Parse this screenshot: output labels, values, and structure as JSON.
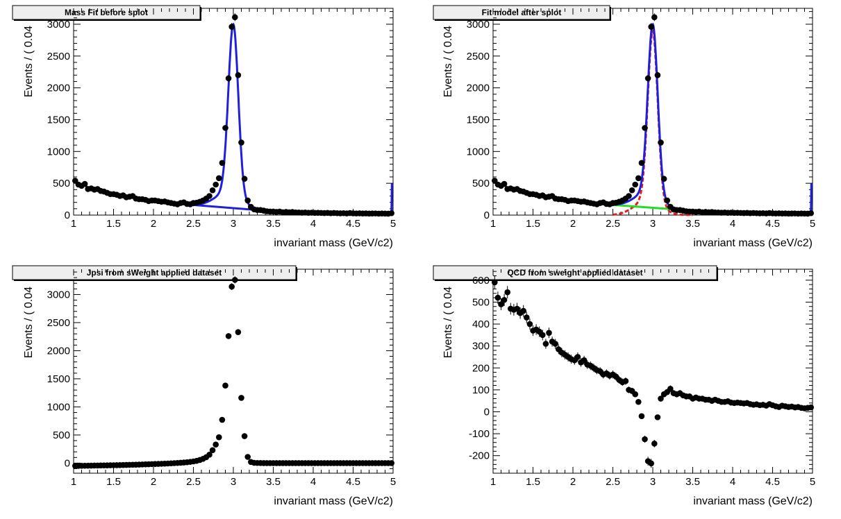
{
  "chart_data": [
    {
      "type": "scatter",
      "title": "Mass Fit before splot",
      "xlabel": "invariant mass (GeV/c2)",
      "ylabel": "Events / ( 0.04",
      "xlim": [
        1,
        5
      ],
      "ylim": [
        0,
        3250
      ],
      "xticks": [
        1,
        1.5,
        2,
        2.5,
        3,
        3.5,
        4,
        4.5,
        5
      ],
      "yticks": [
        0,
        500,
        1000,
        1500,
        2000,
        2500,
        3000
      ],
      "series": [
        {
          "kind": "points",
          "color": "#000000",
          "x": [
            1.02,
            1.06,
            1.1,
            1.14,
            1.18,
            1.22,
            1.26,
            1.3,
            1.34,
            1.38,
            1.42,
            1.46,
            1.5,
            1.54,
            1.58,
            1.62,
            1.66,
            1.7,
            1.74,
            1.78,
            1.82,
            1.86,
            1.9,
            1.94,
            1.98,
            2.02,
            2.06,
            2.1,
            2.14,
            2.18,
            2.22,
            2.26,
            2.3,
            2.34,
            2.38,
            2.42,
            2.46,
            2.5,
            2.54,
            2.58,
            2.62,
            2.66,
            2.7,
            2.74,
            2.78,
            2.82,
            2.86,
            2.9,
            2.94,
            2.98,
            3.02,
            3.06,
            3.1,
            3.14,
            3.18,
            3.22,
            3.26,
            3.3,
            3.34,
            3.38,
            3.42,
            3.46,
            3.5,
            3.54,
            3.58,
            3.62,
            3.66,
            3.7,
            3.74,
            3.78,
            3.82,
            3.86,
            3.9,
            3.94,
            3.98,
            4.02,
            4.06,
            4.1,
            4.14,
            4.18,
            4.22,
            4.26,
            4.3,
            4.34,
            4.38,
            4.42,
            4.46,
            4.5,
            4.54,
            4.58,
            4.62,
            4.66,
            4.7,
            4.74,
            4.78,
            4.82,
            4.86,
            4.9,
            4.94,
            4.98
          ],
          "y": [
            540,
            480,
            460,
            490,
            410,
            420,
            400,
            410,
            380,
            370,
            350,
            330,
            330,
            320,
            300,
            310,
            280,
            290,
            300,
            260,
            250,
            250,
            240,
            220,
            230,
            230,
            220,
            210,
            215,
            200,
            190,
            180,
            170,
            190,
            200,
            175,
            170,
            190,
            195,
            210,
            230,
            260,
            300,
            390,
            480,
            580,
            820,
            1370,
            2150,
            2960,
            3110,
            2200,
            1140,
            570,
            230,
            130,
            90,
            80,
            80,
            70,
            60,
            55,
            55,
            50,
            55,
            45,
            50,
            45,
            48,
            42,
            40,
            38,
            40,
            36,
            38,
            35,
            36,
            34,
            32,
            35,
            30,
            33,
            30,
            28,
            30,
            27,
            32,
            28,
            26,
            28,
            25,
            27,
            24,
            25,
            26,
            23,
            25,
            24,
            22,
            30
          ]
        },
        {
          "kind": "total-fit-curve",
          "color": "#1f1fdd"
        },
        {
          "kind": "background-line",
          "color": "#1f1fdd",
          "x": [
            2.5,
            3.5
          ],
          "y": [
            160,
            60
          ]
        }
      ]
    },
    {
      "type": "scatter",
      "title": "Fit model after splot",
      "xlabel": "invariant mass (GeV/c2)",
      "ylabel": "Events / ( 0.04",
      "xlim": [
        1,
        5
      ],
      "ylim": [
        0,
        3250
      ],
      "xticks": [
        1,
        1.5,
        2,
        2.5,
        3,
        3.5,
        4,
        4.5,
        5
      ],
      "yticks": [
        0,
        500,
        1000,
        1500,
        2000,
        2500,
        3000
      ],
      "series": [
        {
          "kind": "points",
          "color": "#000000",
          "same_as_panel": 0
        },
        {
          "kind": "signal-curve",
          "color": "#dd1f1f",
          "style": "dashed"
        },
        {
          "kind": "background-line",
          "color": "#22dd22",
          "x": [
            2.5,
            3.5
          ],
          "y": [
            160,
            70
          ]
        },
        {
          "kind": "total-fit-curve",
          "color": "#1f1fdd"
        }
      ]
    },
    {
      "type": "scatter",
      "title": "Jpsi from sWeight applied dataset",
      "xlabel": "invariant mass (GeV/c2)",
      "ylabel": "Events / ( 0.04",
      "xlim": [
        1,
        5
      ],
      "ylim": [
        -180,
        3450
      ],
      "xticks": [
        1,
        1.5,
        2,
        2.5,
        3,
        3.5,
        4,
        4.5,
        5
      ],
      "yticks": [
        0,
        500,
        1000,
        1500,
        2000,
        2500,
        3000
      ],
      "series": [
        {
          "kind": "points",
          "color": "#000000",
          "x": [
            1.02,
            1.06,
            1.1,
            1.14,
            1.18,
            1.22,
            1.26,
            1.3,
            1.34,
            1.38,
            1.42,
            1.46,
            1.5,
            1.54,
            1.58,
            1.62,
            1.66,
            1.7,
            1.74,
            1.78,
            1.82,
            1.86,
            1.9,
            1.94,
            1.98,
            2.02,
            2.06,
            2.1,
            2.14,
            2.18,
            2.22,
            2.26,
            2.3,
            2.34,
            2.38,
            2.42,
            2.46,
            2.5,
            2.54,
            2.58,
            2.62,
            2.66,
            2.7,
            2.74,
            2.78,
            2.82,
            2.86,
            2.9,
            2.94,
            2.98,
            3.02,
            3.06,
            3.1,
            3.14,
            3.18,
            3.22,
            3.26,
            3.3,
            3.34,
            3.38,
            3.42,
            3.46,
            3.5,
            3.54,
            3.58,
            3.62,
            3.66,
            3.7,
            3.74,
            3.78,
            3.82,
            3.86,
            3.9,
            3.94,
            3.98,
            4.02,
            4.06,
            4.1,
            4.14,
            4.18,
            4.22,
            4.26,
            4.3,
            4.34,
            4.38,
            4.42,
            4.46,
            4.5,
            4.54,
            4.58,
            4.62,
            4.66,
            4.7,
            4.74,
            4.78,
            4.82,
            4.86,
            4.9,
            4.94,
            4.98
          ],
          "y": [
            -50,
            -50,
            -48,
            -47,
            -46,
            -45,
            -44,
            -43,
            -42,
            -41,
            -40,
            -39,
            -38,
            -37,
            -36,
            -34,
            -33,
            -31,
            -30,
            -28,
            -26,
            -24,
            -22,
            -20,
            -18,
            -16,
            -14,
            -12,
            -10,
            -7,
            -4,
            -1,
            2,
            6,
            10,
            15,
            22,
            30,
            40,
            55,
            75,
            105,
            150,
            230,
            330,
            460,
            770,
            1380,
            2260,
            3140,
            3260,
            2330,
            1160,
            480,
            110,
            20,
            5,
            2,
            1,
            0,
            0,
            0,
            0,
            0,
            0,
            0,
            0,
            0,
            0,
            0,
            0,
            0,
            0,
            0,
            0,
            0,
            0,
            0,
            0,
            0,
            0,
            0,
            0,
            0,
            0,
            0,
            0,
            0,
            0,
            0,
            0,
            0,
            0,
            0,
            0,
            0,
            0,
            0,
            0,
            0
          ]
        }
      ]
    },
    {
      "type": "scatter",
      "title": "QCD from sweight applied dataset",
      "xlabel": "invariant mass (GeV/c2)",
      "ylabel": "Events / ( 0.04",
      "xlim": [
        1,
        5
      ],
      "ylim": [
        -280,
        650
      ],
      "xticks": [
        1,
        1.5,
        2,
        2.5,
        3,
        3.5,
        4,
        4.5,
        5
      ],
      "yticks": [
        -200,
        -100,
        0,
        100,
        200,
        300,
        400,
        500,
        600
      ],
      "series": [
        {
          "kind": "points",
          "color": "#000000",
          "x": [
            1.02,
            1.06,
            1.1,
            1.14,
            1.18,
            1.22,
            1.26,
            1.3,
            1.34,
            1.38,
            1.42,
            1.46,
            1.5,
            1.54,
            1.58,
            1.62,
            1.66,
            1.7,
            1.74,
            1.78,
            1.82,
            1.86,
            1.9,
            1.94,
            1.98,
            2.02,
            2.06,
            2.1,
            2.14,
            2.18,
            2.22,
            2.26,
            2.3,
            2.34,
            2.38,
            2.42,
            2.46,
            2.5,
            2.54,
            2.58,
            2.62,
            2.66,
            2.7,
            2.74,
            2.78,
            2.82,
            2.86,
            2.9,
            2.94,
            2.98,
            3.02,
            3.06,
            3.1,
            3.14,
            3.18,
            3.22,
            3.26,
            3.3,
            3.34,
            3.38,
            3.42,
            3.46,
            3.5,
            3.54,
            3.58,
            3.62,
            3.66,
            3.7,
            3.74,
            3.78,
            3.82,
            3.86,
            3.9,
            3.94,
            3.98,
            4.02,
            4.06,
            4.1,
            4.14,
            4.18,
            4.22,
            4.26,
            4.3,
            4.34,
            4.38,
            4.42,
            4.46,
            4.5,
            4.54,
            4.58,
            4.62,
            4.66,
            4.7,
            4.74,
            4.78,
            4.82,
            4.86,
            4.9,
            4.94,
            4.98
          ],
          "y": [
            590,
            520,
            490,
            510,
            545,
            470,
            465,
            470,
            450,
            460,
            430,
            400,
            370,
            375,
            365,
            350,
            310,
            360,
            320,
            310,
            285,
            270,
            260,
            250,
            240,
            235,
            250,
            225,
            235,
            215,
            210,
            200,
            190,
            185,
            170,
            175,
            165,
            170,
            160,
            145,
            135,
            140,
            100,
            95,
            80,
            45,
            -20,
            -125,
            -225,
            -235,
            -145,
            -25,
            60,
            80,
            90,
            105,
            85,
            80,
            85,
            75,
            70,
            70,
            60,
            65,
            60,
            60,
            55,
            55,
            50,
            55,
            50,
            45,
            45,
            48,
            42,
            40,
            42,
            40,
            38,
            40,
            35,
            32,
            34,
            30,
            32,
            28,
            35,
            30,
            25,
            22,
            28,
            25,
            22,
            24,
            20,
            22,
            18,
            16,
            18,
            20
          ]
        }
      ]
    }
  ]
}
